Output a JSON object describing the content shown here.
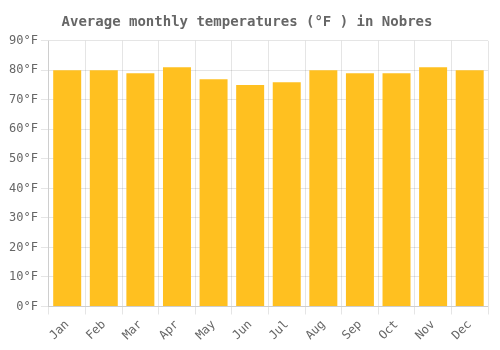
{
  "chart_data": {
    "type": "bar",
    "title": "Average monthly temperatures (°F ) in Nobres",
    "categories": [
      "Jan",
      "Feb",
      "Mar",
      "Apr",
      "May",
      "Jun",
      "Jul",
      "Aug",
      "Sep",
      "Oct",
      "Nov",
      "Dec"
    ],
    "values": [
      80,
      80,
      79,
      81,
      77,
      75,
      76,
      80,
      79,
      79,
      81,
      80
    ],
    "color": "#FFC020",
    "ylim": [
      0,
      90
    ],
    "yticks": [
      {
        "value": 0,
        "label": "0°F"
      },
      {
        "value": 10,
        "label": "10°F"
      },
      {
        "value": 20,
        "label": "20°F"
      },
      {
        "value": 30,
        "label": "30°F"
      },
      {
        "value": 40,
        "label": "40°F"
      },
      {
        "value": 50,
        "label": "50°F"
      },
      {
        "value": 60,
        "label": "60°F"
      },
      {
        "value": 70,
        "label": "70°F"
      },
      {
        "value": 80,
        "label": "80°F"
      },
      {
        "value": 90,
        "label": "90°F"
      }
    ],
    "grid": true
  }
}
